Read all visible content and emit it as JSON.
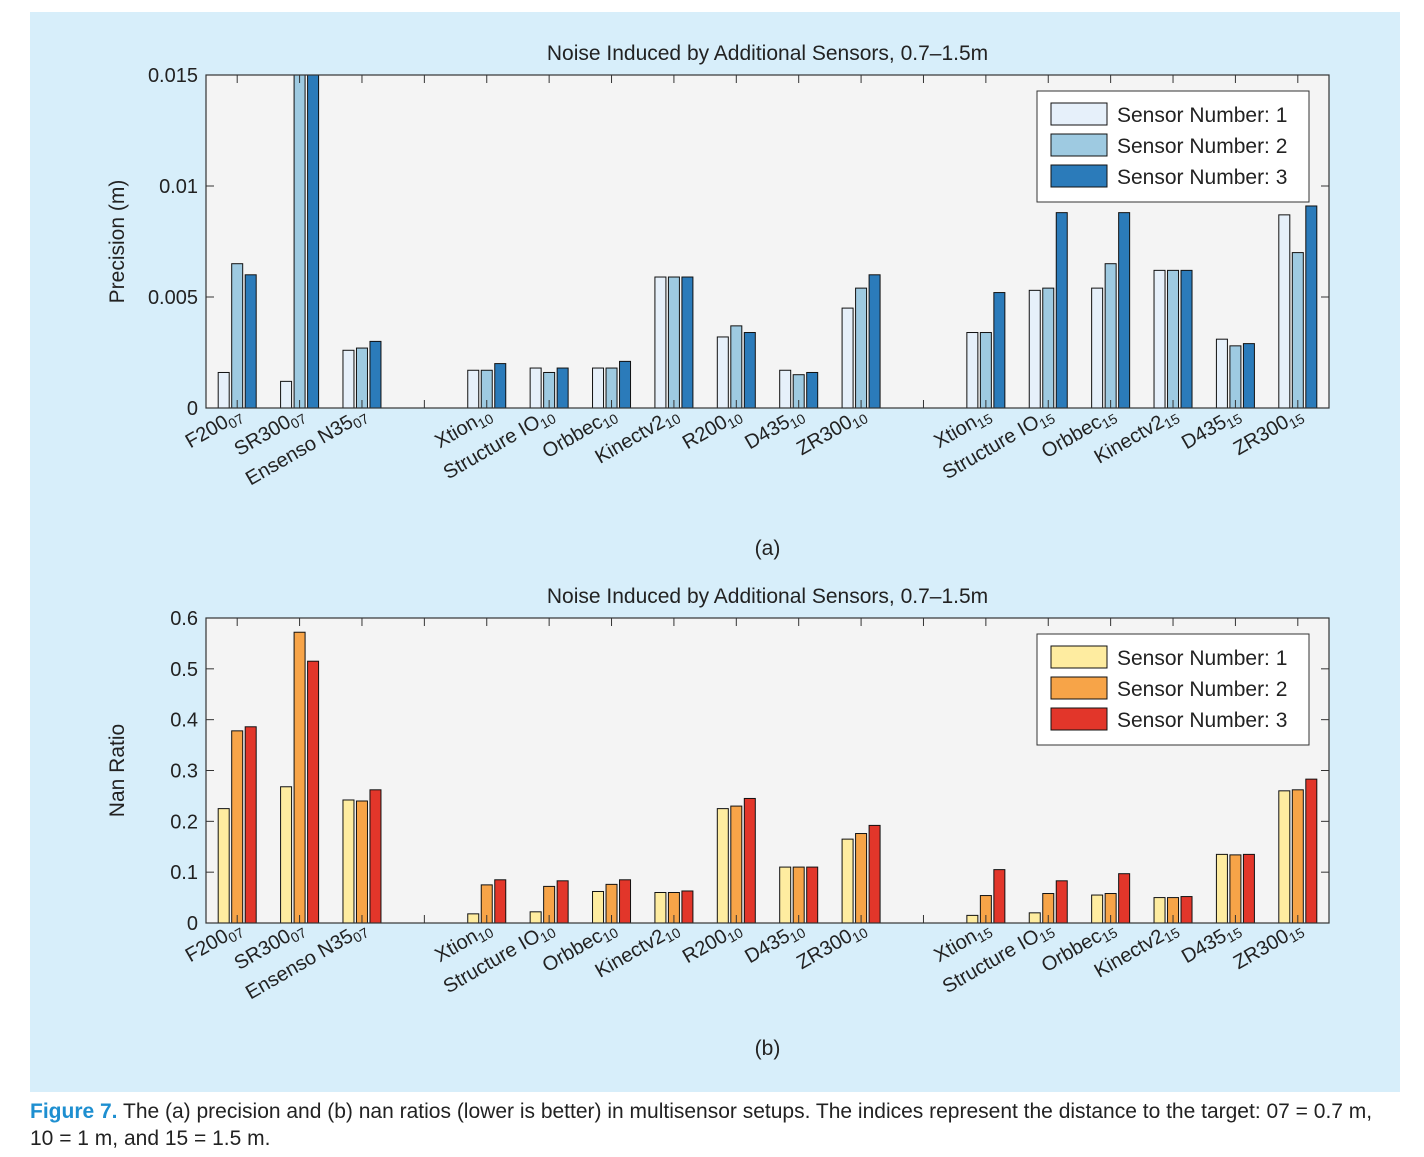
{
  "caption": {
    "label": "Figure 7.",
    "text": " The (a) precision and (b) nan ratios (lower is better) in multisensor setups. The indices represent the distance to the target: 07 = 0.7 m, 10 = 1 m, and 15 = 1.5 m."
  },
  "chart_data": [
    {
      "type": "bar",
      "title": "Noise Induced by Additional Sensors, 0.7–1.5m",
      "panel_label": "(a)",
      "ylabel": "Precision (m)",
      "xlabel": "",
      "ylim": [
        0,
        0.015
      ],
      "yticks": [
        0,
        0.005,
        0.01,
        0.015
      ],
      "ytick_labels": [
        "0",
        "0.005",
        "0.01",
        "0.015"
      ],
      "grid": false,
      "legend_position": "top-right",
      "categories": [
        {
          "base": "F200",
          "sub": "07"
        },
        {
          "base": "SR300",
          "sub": "07"
        },
        {
          "base": "Ensenso N35",
          "sub": "07"
        },
        {
          "base": "",
          "sub": ""
        },
        {
          "base": "Xtion",
          "sub": "10"
        },
        {
          "base": "Structure IO",
          "sub": "10"
        },
        {
          "base": "Orbbec",
          "sub": "10"
        },
        {
          "base": "Kinectv2",
          "sub": "10"
        },
        {
          "base": "R200",
          "sub": "10"
        },
        {
          "base": "D435",
          "sub": "10"
        },
        {
          "base": "ZR300",
          "sub": "10"
        },
        {
          "base": "",
          "sub": ""
        },
        {
          "base": "Xtion",
          "sub": "15"
        },
        {
          "base": "Structure IO",
          "sub": "15"
        },
        {
          "base": "Orbbec",
          "sub": "15"
        },
        {
          "base": "Kinectv2",
          "sub": "15"
        },
        {
          "base": "D435",
          "sub": "15"
        },
        {
          "base": "ZR300",
          "sub": "15"
        }
      ],
      "series": [
        {
          "name": "Sensor Number: 1",
          "color": "#e6f0fa",
          "values": [
            0.0016,
            0.0012,
            0.0026,
            null,
            0.0017,
            0.0018,
            0.0018,
            0.0059,
            0.0032,
            0.0017,
            0.0045,
            null,
            0.0034,
            0.0053,
            0.0054,
            0.0062,
            0.0031,
            0.0087
          ]
        },
        {
          "name": "Sensor Number: 2",
          "color": "#9ecae1",
          "values": [
            0.0065,
            0.015,
            0.0027,
            null,
            0.0017,
            0.0016,
            0.0018,
            0.0059,
            0.0037,
            0.0015,
            0.0054,
            null,
            0.0034,
            0.0054,
            0.0065,
            0.0062,
            0.0028,
            0.007
          ]
        },
        {
          "name": "Sensor Number: 3",
          "color": "#2b7bba",
          "values": [
            0.006,
            0.015,
            0.003,
            null,
            0.002,
            0.0018,
            0.0021,
            0.0059,
            0.0034,
            0.0016,
            0.006,
            null,
            0.0052,
            0.0088,
            0.0088,
            0.0062,
            0.0029,
            0.0091
          ]
        }
      ]
    },
    {
      "type": "bar",
      "title": "Noise Induced by Additional Sensors, 0.7–1.5m",
      "panel_label": "(b)",
      "ylabel": "Nan Ratio",
      "xlabel": "",
      "ylim": [
        0,
        0.6
      ],
      "yticks": [
        0,
        0.1,
        0.2,
        0.3,
        0.4,
        0.5,
        0.6
      ],
      "ytick_labels": [
        "0",
        "0.1",
        "0.2",
        "0.3",
        "0.4",
        "0.5",
        "0.6"
      ],
      "grid": false,
      "legend_position": "top-right",
      "categories": [
        {
          "base": "F200",
          "sub": "07"
        },
        {
          "base": "SR300",
          "sub": "07"
        },
        {
          "base": "Ensenso N35",
          "sub": "07"
        },
        {
          "base": "",
          "sub": ""
        },
        {
          "base": "Xtion",
          "sub": "10"
        },
        {
          "base": "Structure IO",
          "sub": "10"
        },
        {
          "base": "Orbbec",
          "sub": "10"
        },
        {
          "base": "Kinectv2",
          "sub": "10"
        },
        {
          "base": "R200",
          "sub": "10"
        },
        {
          "base": "D435",
          "sub": "10"
        },
        {
          "base": "ZR300",
          "sub": "10"
        },
        {
          "base": "",
          "sub": ""
        },
        {
          "base": "Xtion",
          "sub": "15"
        },
        {
          "base": "Structure IO",
          "sub": "15"
        },
        {
          "base": "Orbbec",
          "sub": "15"
        },
        {
          "base": "Kinectv2",
          "sub": "15"
        },
        {
          "base": "D435",
          "sub": "15"
        },
        {
          "base": "ZR300",
          "sub": "15"
        }
      ],
      "series": [
        {
          "name": "Sensor Number: 1",
          "color": "#feeca0",
          "values": [
            0.225,
            0.268,
            0.242,
            null,
            0.018,
            0.022,
            0.062,
            0.06,
            0.225,
            0.11,
            0.165,
            null,
            0.015,
            0.02,
            0.055,
            0.05,
            0.135,
            0.26
          ]
        },
        {
          "name": "Sensor Number: 2",
          "color": "#f7a448",
          "values": [
            0.378,
            0.572,
            0.24,
            null,
            0.075,
            0.072,
            0.076,
            0.06,
            0.23,
            0.11,
            0.176,
            null,
            0.054,
            0.058,
            0.058,
            0.05,
            0.134,
            0.262
          ]
        },
        {
          "name": "Sensor Number: 3",
          "color": "#e2362a",
          "values": [
            0.386,
            0.515,
            0.262,
            null,
            0.085,
            0.083,
            0.085,
            0.063,
            0.245,
            0.11,
            0.192,
            null,
            0.105,
            0.083,
            0.097,
            0.052,
            0.135,
            0.283
          ]
        }
      ]
    }
  ]
}
